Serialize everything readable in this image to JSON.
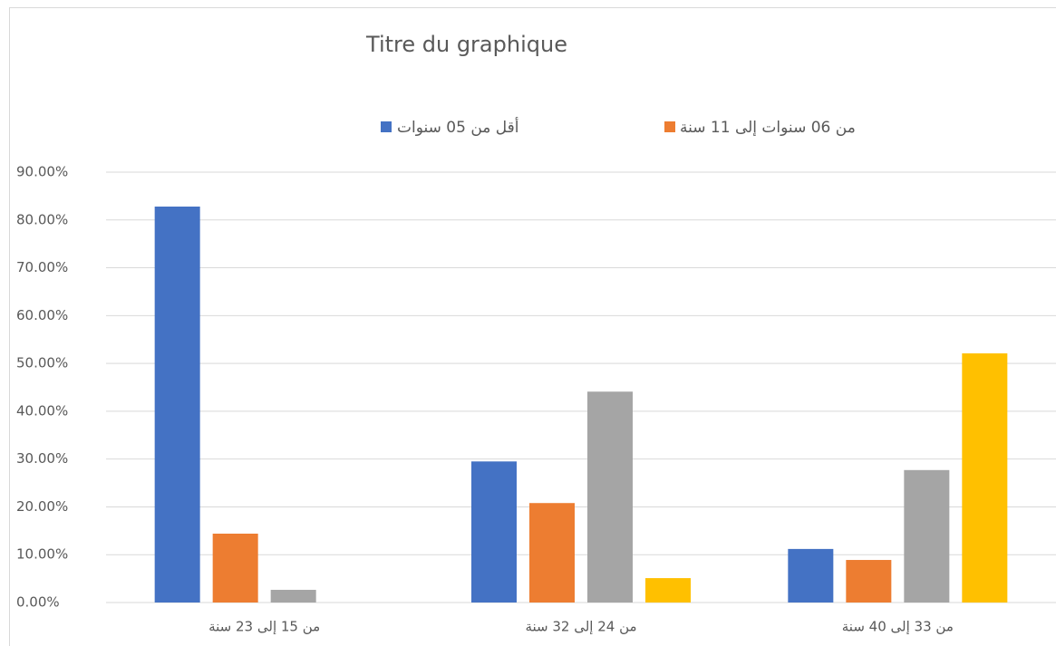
{
  "chart_data": {
    "type": "bar",
    "title": "Titre du graphique",
    "categories": [
      "من 15 إلى 23 سنة",
      "من 24 إلى 32 سنة",
      "من 33 إلى 40 سنة"
    ],
    "series": [
      {
        "name": "أقل من 05 سنوات",
        "color": "#4472c4",
        "values": [
          82.8,
          29.5,
          11.2
        ]
      },
      {
        "name": "من 06 سنوات إلى 11 سنة",
        "color": "#ed7d31",
        "values": [
          14.4,
          20.8,
          8.9
        ]
      },
      {
        "color": "#a5a5a5",
        "values": [
          2.65,
          44.1,
          27.7
        ]
      },
      {
        "color": "#ffc000",
        "values": [
          0,
          5.1,
          52.1
        ]
      }
    ],
    "ylim": [
      0,
      90
    ],
    "yticks": [
      {
        "value": 0,
        "label": "0.00%"
      },
      {
        "value": 10,
        "label": "10.00%"
      },
      {
        "value": 20,
        "label": "20.00%"
      },
      {
        "value": 30,
        "label": "30.00%"
      },
      {
        "value": 40,
        "label": "40.00%"
      },
      {
        "value": 50,
        "label": "50.00%"
      },
      {
        "value": 60,
        "label": "60.00%"
      },
      {
        "value": 70,
        "label": "70.00%"
      },
      {
        "value": 80,
        "label": "80.00%"
      },
      {
        "value": 90,
        "label": "90.00%"
      }
    ],
    "grid": true,
    "legend": "top"
  }
}
